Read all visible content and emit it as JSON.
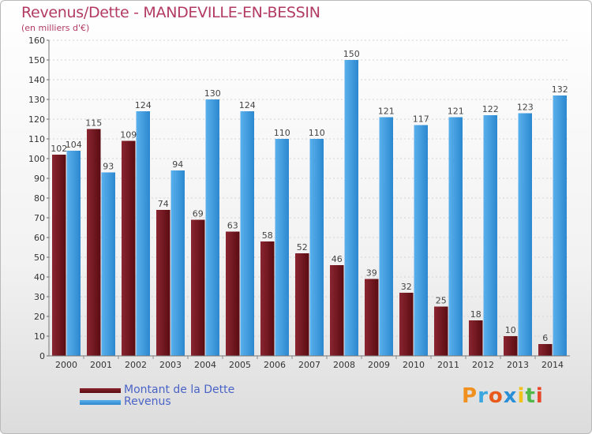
{
  "colors": {
    "dette_top": "#8a2530",
    "dette_bottom": "#5a0c12",
    "revenus_top": "#5ab0ec",
    "revenus_bottom": "#2c88cf",
    "title": "#b23a63",
    "legend_text": "#4a63c6"
  },
  "chart_data": {
    "type": "bar",
    "title": "Revenus/Dette - MANDEVILLE-EN-BESSIN",
    "subtitle": "(en milliers d'€)",
    "xlabel": "",
    "ylabel": "",
    "ylim": [
      0,
      160
    ],
    "yticks": [
      0,
      10,
      20,
      30,
      40,
      50,
      60,
      70,
      80,
      90,
      100,
      110,
      120,
      130,
      140,
      150,
      160
    ],
    "grid": true,
    "legend_position": "bottom-left",
    "categories": [
      "2000",
      "2001",
      "2002",
      "2003",
      "2004",
      "2005",
      "2006",
      "2007",
      "2008",
      "2009",
      "2010",
      "2011",
      "2012",
      "2013",
      "2014"
    ],
    "series": [
      {
        "name": "Montant de la Dette",
        "values": [
          102,
          115,
          109,
          74,
          69,
          63,
          58,
          52,
          46,
          39,
          32,
          25,
          18,
          10,
          6
        ]
      },
      {
        "name": "Revenus",
        "values": [
          104,
          93,
          124,
          94,
          130,
          124,
          110,
          110,
          150,
          121,
          117,
          121,
          122,
          123,
          132
        ]
      }
    ]
  },
  "legend": {
    "dette_label": "Montant de la Dette",
    "revenus_label": "Revenus"
  },
  "logo": {
    "letters": [
      "P",
      "r",
      "o",
      "x",
      "i",
      "t",
      "i"
    ],
    "colors": [
      "#f0901e",
      "#3aa7e0",
      "#e85a1c",
      "#2a8fd6",
      "#f3c11c",
      "#52b948",
      "#e8472a"
    ]
  }
}
